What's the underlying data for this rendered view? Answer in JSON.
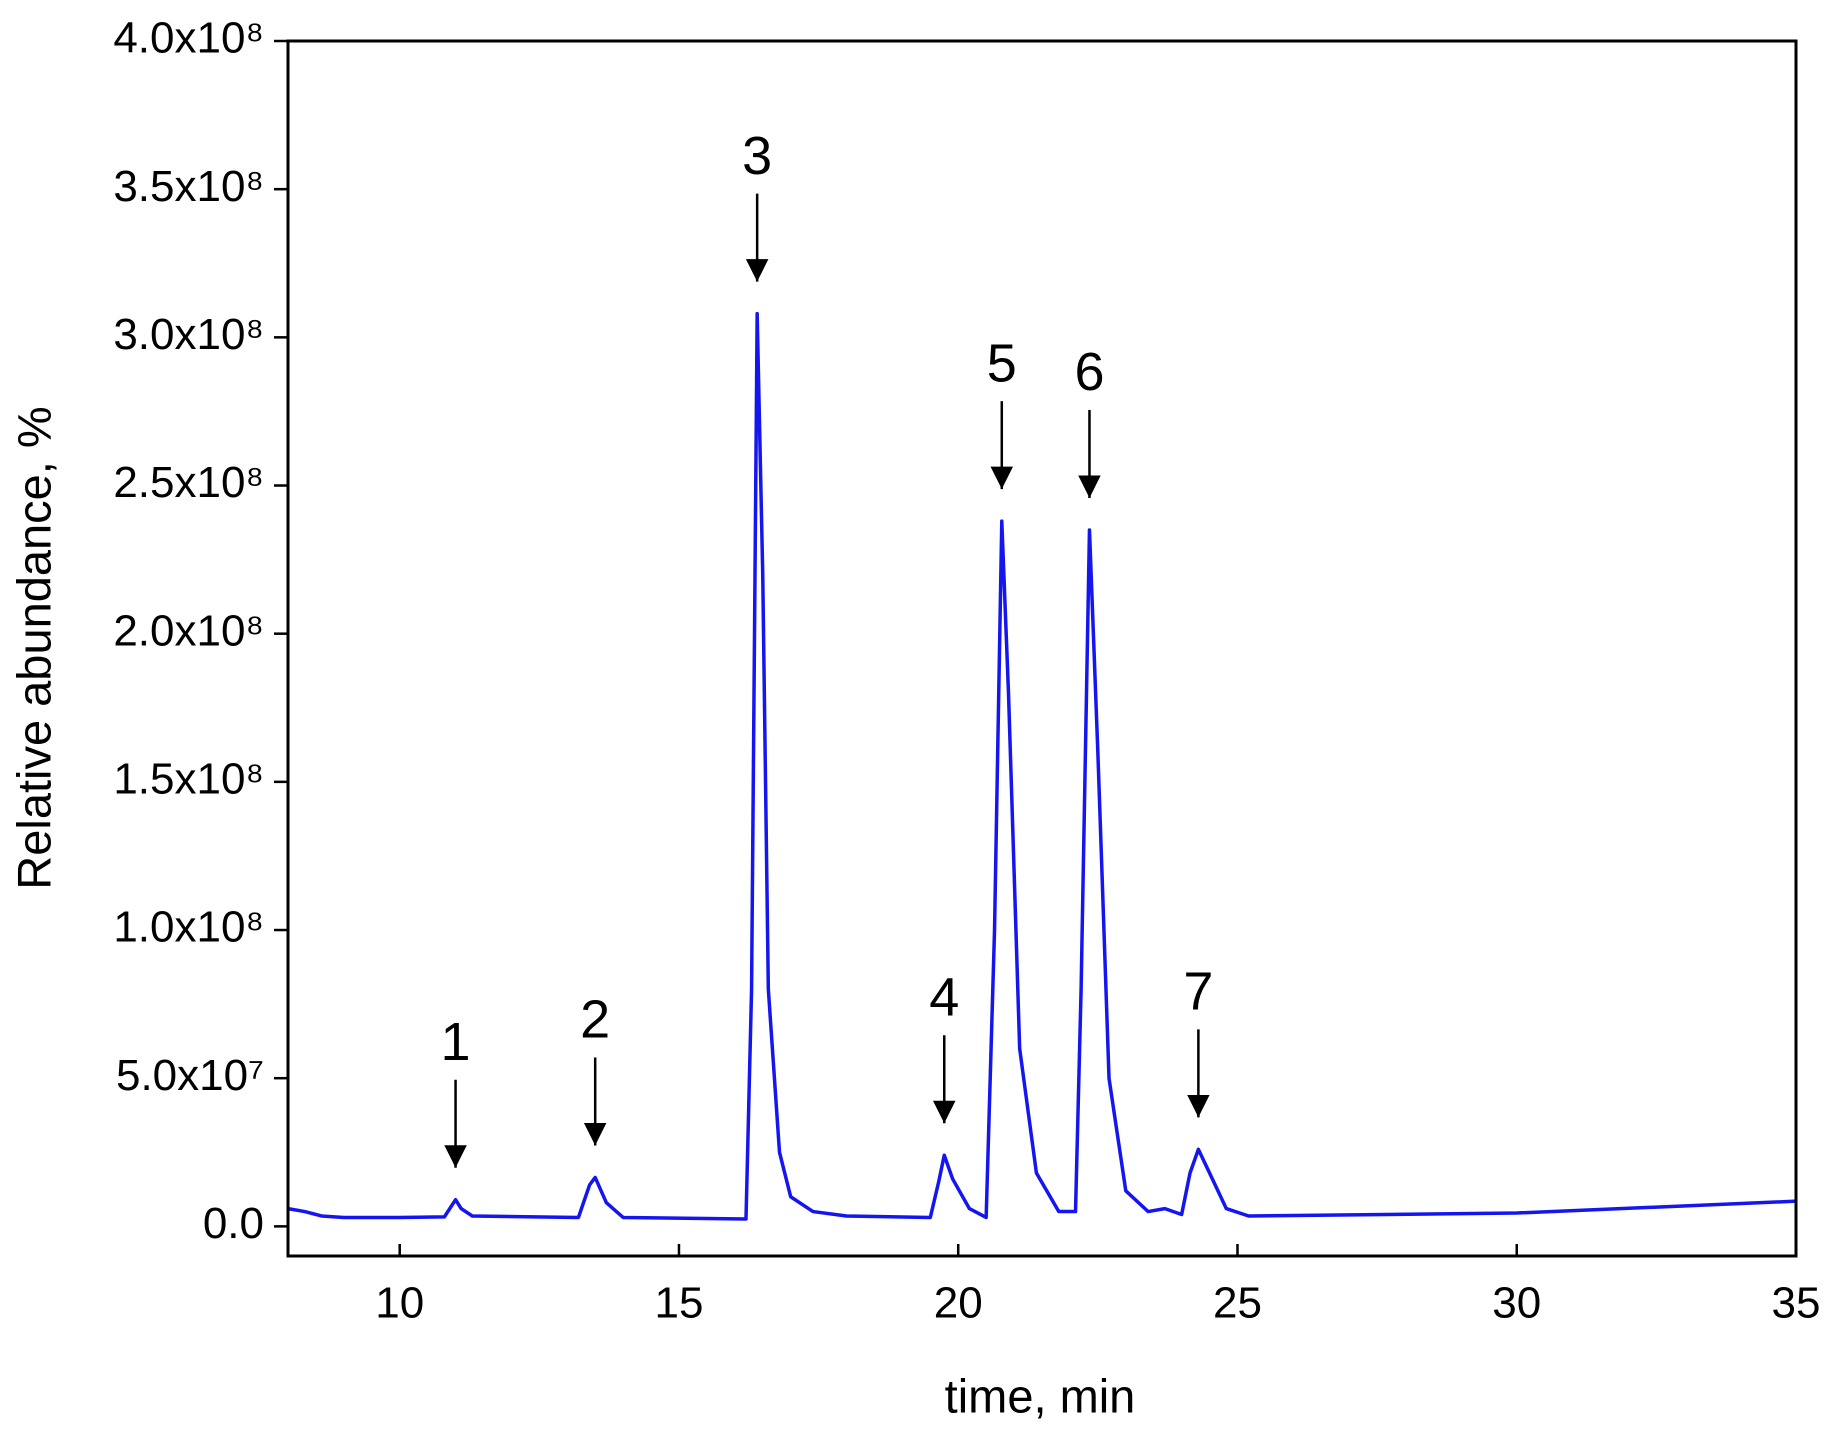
{
  "chart_data": {
    "type": "line",
    "x_label": "time, min",
    "y_label": "Relative abundance, %",
    "xlim": [
      8,
      35
    ],
    "xticks": [
      10,
      15,
      20,
      25,
      30,
      35
    ],
    "ylim": [
      -10000000,
      400000000
    ],
    "yticks": [
      {
        "value": 0,
        "label": "0.0"
      },
      {
        "value": 50000000,
        "label": "5.0x10⁷"
      },
      {
        "value": 100000000,
        "label": "1.0x10⁸"
      },
      {
        "value": 150000000,
        "label": "1.5x10⁸"
      },
      {
        "value": 200000000,
        "label": "2.0x10⁸"
      },
      {
        "value": 250000000,
        "label": "2.5x10⁸"
      },
      {
        "value": 300000000,
        "label": "3.0x10⁸"
      },
      {
        "value": 350000000,
        "label": "3.5x10⁸"
      },
      {
        "value": 400000000,
        "label": "4.0x10⁸"
      }
    ],
    "series": [
      {
        "color": "#1515f0",
        "x": [
          8.0,
          8.3,
          8.6,
          9.0,
          10.0,
          10.8,
          11.0,
          11.1,
          11.3,
          13.2,
          13.4,
          13.5,
          13.7,
          14.0,
          16.2,
          16.3,
          16.4,
          16.5,
          16.6,
          16.8,
          17.0,
          17.4,
          18.0,
          19.5,
          19.65,
          19.75,
          19.9,
          20.2,
          20.5,
          20.65,
          20.78,
          20.9,
          21.1,
          21.4,
          21.8,
          22.1,
          22.2,
          22.35,
          22.5,
          22.7,
          23.0,
          23.4,
          23.7,
          24.0,
          24.15,
          24.3,
          24.5,
          24.8,
          25.2,
          30.0,
          35.0
        ],
        "values": [
          6000000,
          5000000,
          3500000,
          3000000,
          3000000,
          3200000,
          9000000,
          6000000,
          3500000,
          3000000,
          14000000,
          16500000,
          8000000,
          3000000,
          2500000,
          80000000,
          308000000,
          220000000,
          80000000,
          25000000,
          10000000,
          5000000,
          3500000,
          3000000,
          15000000,
          24000000,
          16000000,
          6000000,
          3000000,
          100000000,
          238000000,
          180000000,
          60000000,
          18000000,
          5000000,
          5000000,
          80000000,
          235000000,
          160000000,
          50000000,
          12000000,
          5000000,
          6000000,
          4000000,
          18000000,
          26000000,
          18000000,
          6000000,
          3500000,
          4500000,
          8500000
        ]
      }
    ],
    "annotations": [
      {
        "text": "1",
        "x": 11.0,
        "y": 9000000
      },
      {
        "text": "2",
        "x": 13.5,
        "y": 16500000
      },
      {
        "text": "3",
        "x": 16.4,
        "y": 308000000
      },
      {
        "text": "4",
        "x": 19.75,
        "y": 24000000
      },
      {
        "text": "5",
        "x": 20.78,
        "y": 238000000
      },
      {
        "text": "6",
        "x": 22.35,
        "y": 235000000
      },
      {
        "text": "7",
        "x": 24.3,
        "y": 26000000
      }
    ]
  }
}
